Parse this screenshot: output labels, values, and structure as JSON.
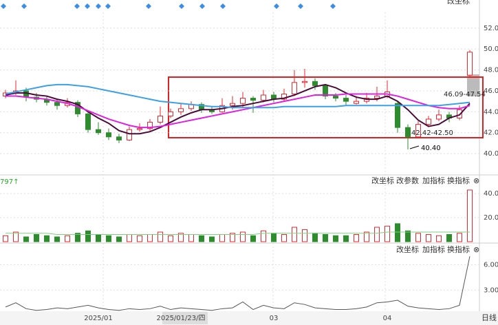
{
  "chart_data": [
    {
      "type": "candlestick",
      "top_label": "改坐标",
      "categories": [
        null,
        null,
        null,
        null,
        null,
        null,
        null,
        null,
        null,
        "2025/01",
        null,
        null,
        null,
        null,
        null,
        null,
        null,
        "2025/01/23/四",
        null,
        null,
        null,
        null,
        null,
        null,
        null,
        null,
        "03",
        null,
        null,
        null,
        null,
        null,
        null,
        null,
        null,
        null,
        null,
        "04",
        null,
        null,
        null,
        null,
        null,
        null,
        null,
        null
      ],
      "open": [
        45.5,
        45.8,
        46.0,
        45.4,
        45.2,
        44.9,
        44.6,
        44.9,
        43.8,
        42.3,
        42.0,
        41.6,
        41.3,
        42.3,
        42.4,
        43.0,
        43.6,
        44.0,
        44.3,
        44.7,
        44.2,
        44.0,
        44.6,
        44.8,
        45.3,
        45.1,
        45.6,
        45.2,
        45.7,
        46.8,
        46.9,
        46.5,
        45.5,
        45.3,
        44.8,
        45.0,
        45.3,
        45.5,
        44.8,
        42.5,
        41.6,
        42.8,
        43.3,
        43.7,
        43.4,
        47.5
      ],
      "high": [
        46.1,
        47.0,
        46.3,
        45.8,
        45.5,
        45.2,
        45.3,
        45.1,
        44.0,
        43.0,
        42.4,
        41.9,
        42.6,
        42.9,
        43.3,
        44.5,
        44.3,
        44.8,
        45.0,
        44.9,
        44.5,
        45.3,
        45.5,
        45.9,
        45.5,
        46.1,
        45.9,
        46.2,
        48.0,
        48.1,
        47.2,
        46.6,
        45.8,
        45.6,
        45.5,
        45.8,
        46.4,
        47.0,
        45.0,
        42.8,
        43.1,
        43.6,
        44.2,
        44.0,
        44.6,
        49.9
      ],
      "low": [
        45.3,
        45.6,
        45.0,
        44.9,
        44.6,
        44.2,
        44.4,
        43.5,
        42.0,
        41.8,
        41.3,
        41.0,
        41.2,
        42.1,
        42.2,
        42.8,
        43.4,
        43.7,
        44.1,
        43.9,
        43.8,
        43.9,
        44.2,
        44.4,
        43.9,
        44.9,
        44.9,
        45.0,
        45.5,
        46.3,
        46.1,
        45.2,
        45.0,
        44.6,
        44.7,
        44.8,
        45.0,
        45.3,
        42.0,
        40.4,
        41.5,
        42.6,
        43.1,
        43.0,
        43.2,
        47.4
      ],
      "close": [
        45.8,
        46.0,
        45.4,
        45.2,
        44.9,
        44.6,
        44.9,
        43.8,
        42.3,
        42.0,
        41.6,
        41.3,
        42.3,
        42.4,
        43.0,
        43.6,
        44.0,
        44.3,
        44.7,
        44.2,
        44.0,
        44.6,
        44.8,
        45.3,
        45.1,
        45.6,
        45.2,
        45.7,
        46.8,
        46.9,
        46.5,
        45.5,
        45.3,
        45.0,
        45.0,
        45.3,
        45.5,
        45.9,
        42.5,
        41.6,
        42.8,
        43.3,
        43.7,
        43.4,
        44.2,
        49.7
      ],
      "up_color": "#e8242c",
      "down_color": "#2e8b2e",
      "series": [
        {
          "color": "#4b0a3a",
          "values": [
            45.6,
            45.8,
            45.8,
            45.6,
            45.5,
            45.2,
            45.0,
            44.7,
            44.0,
            43.4,
            42.9,
            42.2,
            41.9,
            41.9,
            42.1,
            42.5,
            43.0,
            43.5,
            43.9,
            44.2,
            44.2,
            44.3,
            44.5,
            44.6,
            44.8,
            45.0,
            45.2,
            45.3,
            45.6,
            46.0,
            46.4,
            46.6,
            46.3,
            45.8,
            45.4,
            45.2,
            45.2,
            45.5,
            45.0,
            44.2,
            43.2,
            42.6,
            42.8,
            43.4,
            43.7,
            44.8
          ]
        },
        {
          "color": "#e020e0",
          "values": [
            45.5,
            45.5,
            45.4,
            45.3,
            45.2,
            45.0,
            44.8,
            44.5,
            44.1,
            43.7,
            43.3,
            43.0,
            42.7,
            42.5,
            42.5,
            42.6,
            42.8,
            43.0,
            43.2,
            43.4,
            43.6,
            43.8,
            44.0,
            44.2,
            44.4,
            44.6,
            44.8,
            45.0,
            45.2,
            45.4,
            45.6,
            45.6,
            45.6,
            45.7,
            45.7,
            45.7,
            45.7,
            45.7,
            45.5,
            45.2,
            44.9,
            44.6,
            44.4,
            44.3,
            44.3,
            44.6
          ]
        },
        {
          "color": "#3aa0e8",
          "values": [
            45.7,
            45.9,
            46.1,
            46.3,
            46.5,
            46.6,
            46.6,
            46.5,
            46.4,
            46.2,
            46.0,
            45.8,
            45.6,
            45.4,
            45.2,
            45.0,
            44.9,
            44.8,
            44.7,
            44.6,
            44.5,
            44.5,
            44.4,
            44.4,
            44.4,
            44.4,
            44.4,
            44.5,
            44.5,
            44.5,
            44.5,
            44.5,
            44.5,
            44.6,
            44.6,
            44.6,
            44.6,
            44.6,
            44.6,
            44.6,
            44.6,
            44.6,
            44.6,
            44.7,
            44.8,
            44.9
          ]
        }
      ],
      "annotations": [
        {
          "label": "46.09-47.54"
        },
        {
          "label": "42.42-42.50"
        },
        {
          "value": 40.4,
          "label": "40.40"
        }
      ],
      "ylim": [
        38.1,
        53.5
      ],
      "yticks": [
        {
          "value": 40,
          "label": "40.0"
        },
        {
          "value": 42,
          "label": "42.0"
        },
        {
          "value": 44,
          "label": "44.0"
        },
        {
          "value": 46,
          "label": "46.0"
        },
        {
          "value": 48,
          "label": "48.0"
        },
        {
          "value": 50,
          "label": "50.0"
        },
        {
          "value": 52,
          "label": "52.0"
        }
      ],
      "grid": true
    },
    {
      "type": "bar",
      "header": "797↑",
      "buttons": [
        "改坐标",
        "改参数",
        "加指标",
        "换指标",
        "⊗"
      ],
      "values": [
        5,
        8,
        4,
        6,
        5,
        4,
        5,
        7,
        9,
        6,
        5,
        4,
        6,
        5,
        6,
        8,
        5,
        7,
        6,
        5,
        4,
        6,
        7,
        8,
        5,
        9,
        7,
        6,
        12,
        10,
        7,
        6,
        5,
        5,
        6,
        8,
        12,
        13,
        15,
        9,
        7,
        6,
        5,
        6,
        7,
        43
      ],
      "series": [
        {
          "color": "#7bd17b",
          "values": [
            7,
            7,
            7,
            7,
            7,
            6,
            6,
            6,
            6,
            6,
            6,
            6,
            6,
            6,
            6,
            6,
            6,
            6,
            6,
            6,
            6,
            6,
            6,
            6,
            6,
            7,
            7,
            7,
            7,
            7,
            7,
            7,
            7,
            7,
            7,
            7,
            7,
            8,
            8,
            8,
            8,
            8,
            8,
            8,
            8,
            8
          ]
        }
      ],
      "ylim": [
        0,
        55
      ],
      "yticks": [
        {
          "value": 20,
          "label": "20.0"
        },
        {
          "value": 40,
          "label": "40.0"
        }
      ]
    },
    {
      "type": "line",
      "buttons": [
        "改坐标",
        "加指标",
        "换指标",
        "⊗"
      ],
      "color": "#555",
      "values": [
        1.0,
        1.5,
        0.8,
        0.6,
        0.7,
        0.9,
        0.8,
        1.0,
        1.2,
        0.9,
        0.7,
        0.6,
        0.8,
        0.7,
        0.8,
        1.1,
        0.7,
        0.9,
        0.8,
        0.7,
        0.6,
        0.8,
        0.9,
        1.6,
        0.7,
        1.2,
        0.9,
        0.8,
        1.5,
        1.3,
        0.9,
        0.8,
        0.7,
        0.7,
        0.8,
        1.0,
        1.5,
        1.6,
        1.8,
        1.1,
        0.9,
        0.8,
        0.7,
        0.8,
        1.2,
        7.0
      ],
      "ylim": [
        0.5,
        8.4
      ],
      "yticks": [
        {
          "value": 3,
          "label": "3.00"
        },
        {
          "value": 6,
          "label": "6.00"
        }
      ]
    }
  ],
  "period": "日线"
}
